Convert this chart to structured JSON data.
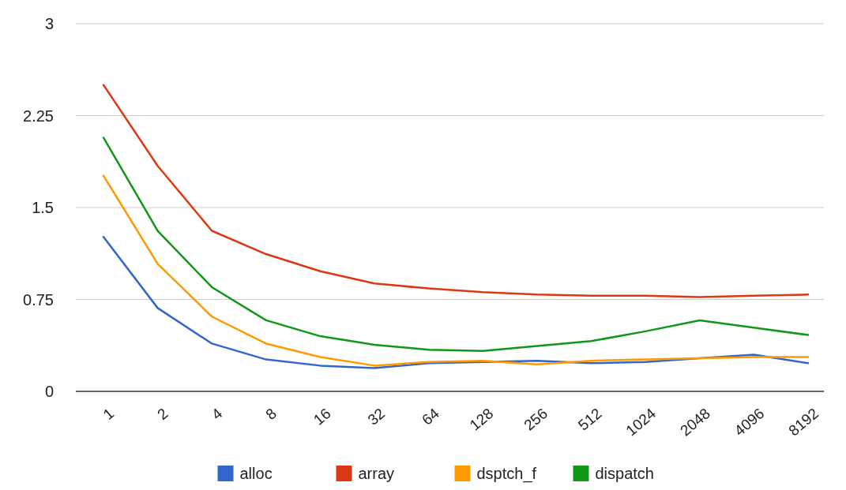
{
  "chart_data": {
    "type": "line",
    "categories": [
      "1",
      "2",
      "4",
      "8",
      "16",
      "32",
      "64",
      "128",
      "256",
      "512",
      "1024",
      "2048",
      "4096",
      "8192"
    ],
    "ylim": [
      0,
      3
    ],
    "yticks": [
      0,
      0.75,
      1.5,
      2.25,
      3
    ],
    "grid": "y",
    "legend": "bottom",
    "marker": "none",
    "line_style": "solid",
    "series": [
      {
        "name": "alloc",
        "color": "#3366cc",
        "values": [
          1.26,
          0.68,
          0.39,
          0.26,
          0.21,
          0.19,
          0.23,
          0.24,
          0.25,
          0.23,
          0.24,
          0.27,
          0.3,
          0.23
        ]
      },
      {
        "name": "array",
        "color": "#dc3912",
        "values": [
          2.5,
          1.84,
          1.31,
          1.12,
          0.98,
          0.88,
          0.84,
          0.81,
          0.79,
          0.78,
          0.78,
          0.77,
          0.78,
          0.79
        ]
      },
      {
        "name": "dsptch_f",
        "color": "#ff9900",
        "values": [
          1.76,
          1.04,
          0.61,
          0.39,
          0.28,
          0.21,
          0.24,
          0.25,
          0.22,
          0.25,
          0.26,
          0.27,
          0.28,
          0.28
        ]
      },
      {
        "name": "dispatch",
        "color": "#109618",
        "values": [
          2.07,
          1.31,
          0.85,
          0.58,
          0.45,
          0.38,
          0.34,
          0.33,
          0.37,
          0.41,
          0.49,
          0.58,
          0.52,
          0.46
        ]
      }
    ]
  }
}
